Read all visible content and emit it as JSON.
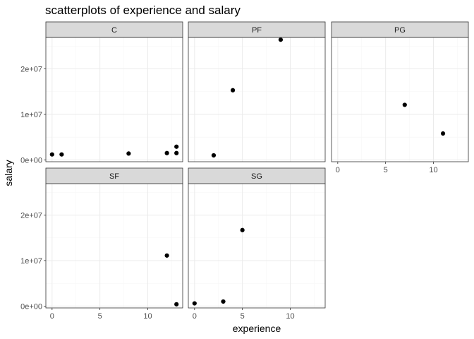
{
  "chart_data": {
    "type": "scatter",
    "title": "scatterplots of experience and salary",
    "xlabel": "experience",
    "ylabel": "salary",
    "xlim": [
      -0.65,
      13.65
    ],
    "ylim": [
      -400000,
      26900000
    ],
    "x_ticks": [
      0,
      5,
      10
    ],
    "x_tick_labels": [
      "0",
      "5",
      "10"
    ],
    "y_ticks": [
      0,
      10000000,
      20000000
    ],
    "y_tick_labels": [
      "0e+00",
      "1e+07",
      "2e+07"
    ],
    "grid": true,
    "layout": "facet_wrap 2 rows x 3 columns",
    "panels": [
      {
        "label": "C",
        "points": [
          [
            0,
            1200000
          ],
          [
            1,
            1200000
          ],
          [
            8,
            1400000
          ],
          [
            12,
            1500000
          ],
          [
            13,
            1500000
          ],
          [
            13,
            2900000
          ]
        ]
      },
      {
        "label": "PF",
        "points": [
          [
            2,
            1000000
          ],
          [
            4,
            15300000
          ],
          [
            9,
            26400000
          ]
        ]
      },
      {
        "label": "PG",
        "points": [
          [
            7,
            12100000
          ],
          [
            11,
            5800000
          ]
        ]
      },
      {
        "label": "SF",
        "points": [
          [
            12,
            11100000
          ],
          [
            13,
            400000
          ]
        ]
      },
      {
        "label": "SG",
        "points": [
          [
            0,
            600000
          ],
          [
            3,
            1000000
          ],
          [
            5,
            16700000
          ]
        ]
      }
    ]
  }
}
